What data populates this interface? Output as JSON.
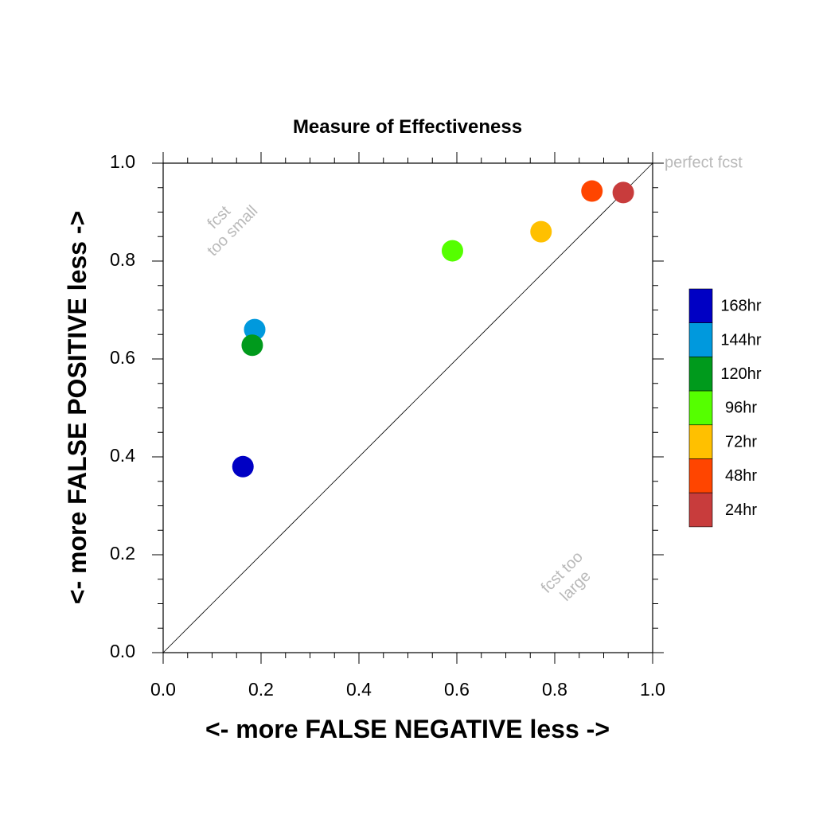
{
  "chart_data": {
    "type": "scatter",
    "title": "Measure of Effectiveness",
    "xlabel": "<- more   FALSE NEGATIVE   less ->",
    "ylabel": "<- more   FALSE POSITIVE   less ->",
    "xlim": [
      0,
      1
    ],
    "ylim": [
      0,
      1
    ],
    "xticks": [
      "0.0",
      "0.2",
      "0.4",
      "0.6",
      "0.8",
      "1.0"
    ],
    "yticks": [
      "0.0",
      "0.2",
      "0.4",
      "0.6",
      "0.8",
      "1.0"
    ],
    "grid": false,
    "diagonal_line": true,
    "annotations": {
      "perfect": "perfect fcst",
      "small_line1": "fcst",
      "small_line2": "too small",
      "large_line1": "fcst too",
      "large_line2": "large"
    },
    "legend_position": "right",
    "series": [
      {
        "name": "168hr",
        "color": "#0000c4",
        "x": 0.163,
        "y": 0.38
      },
      {
        "name": "144hr",
        "color": "#0099dd",
        "x": 0.187,
        "y": 0.66
      },
      {
        "name": "120hr",
        "color": "#009a1c",
        "x": 0.182,
        "y": 0.628
      },
      {
        "name": "96hr",
        "color": "#55ff00",
        "x": 0.591,
        "y": 0.821
      },
      {
        "name": "72hr",
        "color": "#ffc000",
        "x": 0.772,
        "y": 0.86
      },
      {
        "name": "48hr",
        "color": "#ff4500",
        "x": 0.876,
        "y": 0.943
      },
      {
        "name": "24hr",
        "color": "#c83c3c",
        "x": 0.94,
        "y": 0.94
      }
    ]
  }
}
